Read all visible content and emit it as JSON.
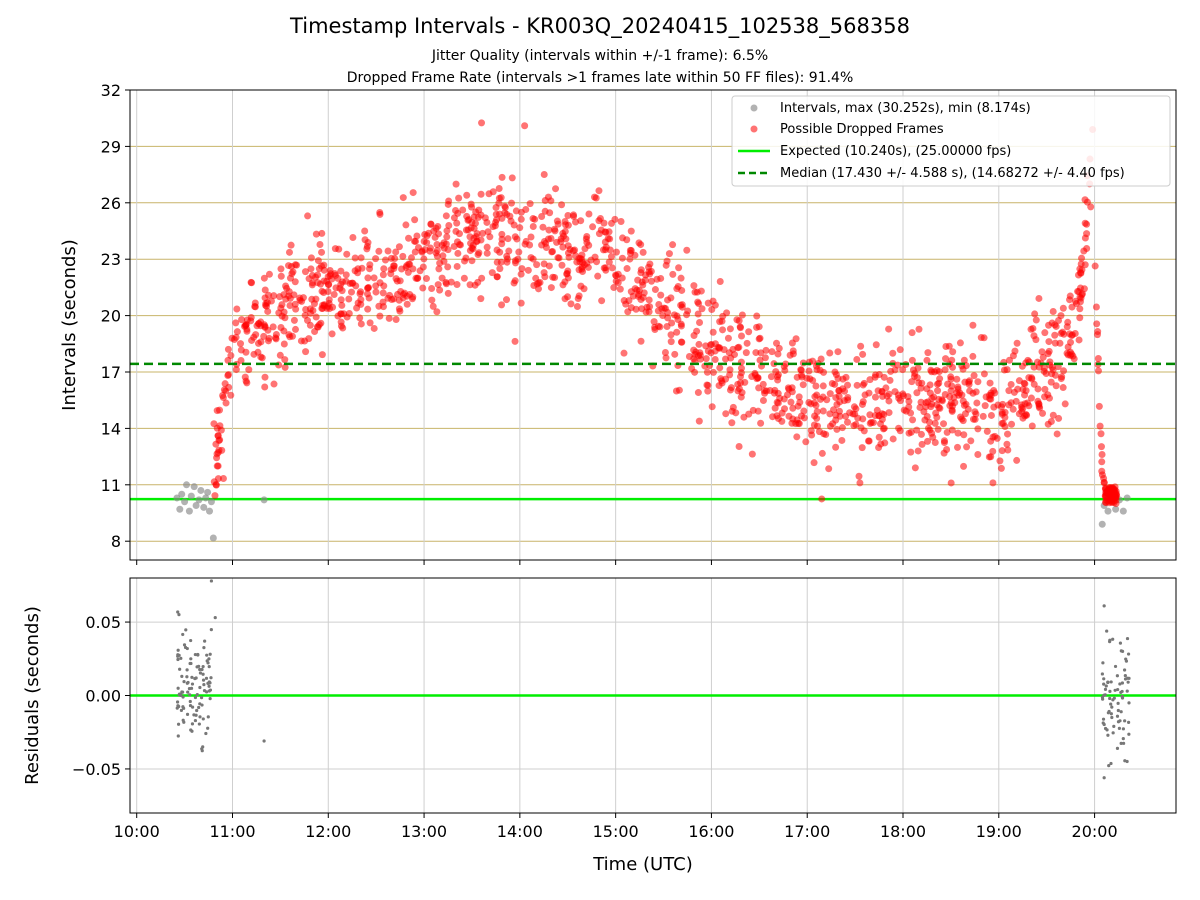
{
  "chart_data": [
    {
      "type": "scatter",
      "panel": "top",
      "title": "Timestamp Intervals - KR003Q_20240415_102538_568358",
      "subtitle_lines": [
        "Jitter Quality (intervals within +/-1 frame): 6.5%",
        "Dropped Frame Rate (intervals >1 frames late within 50 FF files): 91.4%"
      ],
      "ylabel": "Intervals (seconds)",
      "xlabel": "",
      "xlim": [
        9.93,
        20.85
      ],
      "ylim": [
        7.0,
        32.0
      ],
      "yticks": [
        8,
        11,
        14,
        17,
        20,
        23,
        26,
        29,
        32
      ],
      "ytick_labels": [
        "8",
        "11",
        "14",
        "17",
        "20",
        "23",
        "26",
        "29",
        "32"
      ],
      "grid": true,
      "legend_position": "top-right",
      "legend": [
        "Intervals, max (30.252s), min (8.174s)",
        "Possible Dropped Frames",
        "Expected (10.240s), (25.00000 fps)",
        "Median (17.430 +/- 4.588 s), (14.68272 +/- 4.40 fps)"
      ],
      "expected_interval": 10.24,
      "median_interval": 17.43,
      "interval_max": 30.252,
      "interval_min": 8.174,
      "series": [
        {
          "name": "Intervals, max (30.252s), min (8.174s)",
          "style": "gray-dots",
          "points": [
            [
              10.42,
              10.3
            ],
            [
              10.45,
              9.7
            ],
            [
              10.47,
              10.5
            ],
            [
              10.5,
              10.1
            ],
            [
              10.52,
              11.0
            ],
            [
              10.55,
              9.6
            ],
            [
              10.57,
              10.4
            ],
            [
              10.6,
              10.9
            ],
            [
              10.62,
              9.9
            ],
            [
              10.65,
              10.2
            ],
            [
              10.67,
              10.7
            ],
            [
              10.7,
              9.8
            ],
            [
              10.72,
              10.3
            ],
            [
              10.74,
              10.6
            ],
            [
              10.76,
              9.6
            ],
            [
              10.78,
              10.1
            ],
            [
              10.8,
              8.17
            ],
            [
              11.33,
              10.2
            ],
            [
              20.08,
              8.9
            ],
            [
              20.1,
              9.9
            ],
            [
              20.14,
              9.6
            ],
            [
              20.18,
              10.4
            ],
            [
              20.22,
              9.7
            ],
            [
              20.26,
              10.2
            ],
            [
              20.3,
              9.6
            ],
            [
              20.34,
              10.3
            ]
          ]
        },
        {
          "name": "Possible Dropped Frames",
          "style": "red-dots",
          "curve_knots": [
            [
              10.8,
              11.0
            ],
            [
              10.9,
              15.0
            ],
            [
              11.0,
              18.0
            ],
            [
              11.2,
              19.3
            ],
            [
              11.5,
              20.3
            ],
            [
              12.0,
              21.0
            ],
            [
              12.5,
              21.8
            ],
            [
              13.0,
              22.8
            ],
            [
              13.5,
              24.0
            ],
            [
              14.0,
              24.3
            ],
            [
              14.5,
              23.6
            ],
            [
              15.0,
              22.6
            ],
            [
              15.5,
              20.5
            ],
            [
              16.0,
              18.0
            ],
            [
              16.5,
              16.8
            ],
            [
              17.0,
              15.6
            ],
            [
              17.5,
              15.0
            ],
            [
              18.0,
              15.5
            ],
            [
              18.5,
              15.6
            ],
            [
              19.0,
              15.0
            ],
            [
              19.3,
              16.0
            ],
            [
              19.5,
              17.0
            ],
            [
              19.7,
              18.0
            ],
            [
              19.82,
              20.0
            ],
            [
              19.9,
              24.0
            ],
            [
              19.95,
              27.0
            ],
            [
              20.0,
              23.0
            ],
            [
              20.05,
              16.0
            ],
            [
              20.08,
              12.0
            ],
            [
              20.12,
              10.4
            ]
          ],
          "spread": 1.5,
          "extreme_points": [
            [
              13.6,
              30.252
            ],
            [
              14.05,
              30.1
            ],
            [
              19.98,
              29.9
            ],
            [
              17.55,
              11.1
            ]
          ]
        },
        {
          "name": "Expected (10.240s), (25.00000 fps)",
          "style": "green-solid-line",
          "y": 10.24
        },
        {
          "name": "Median (17.430 +/- 4.588 s), (14.68272 +/- 4.40 fps)",
          "style": "green-dashed-line",
          "y": 17.43
        }
      ]
    },
    {
      "type": "scatter",
      "panel": "bottom",
      "xlabel": "Time (UTC)",
      "ylabel": "Residuals (seconds)",
      "xlim": [
        9.93,
        20.85
      ],
      "ylim": [
        -0.08,
        0.08
      ],
      "yticks": [
        -0.05,
        0.0,
        0.05
      ],
      "ytick_labels": [
        "−0.05",
        "0.00",
        "0.05"
      ],
      "xticks": [
        10,
        11,
        12,
        13,
        14,
        15,
        16,
        17,
        18,
        19,
        20
      ],
      "xtick_labels": [
        "10:00",
        "11:00",
        "12:00",
        "13:00",
        "14:00",
        "15:00",
        "16:00",
        "17:00",
        "18:00",
        "19:00",
        "20:00"
      ],
      "grid": true,
      "zero_line": 0.0,
      "series": [
        {
          "name": "",
          "style": "gray-small-dots",
          "clusters": [
            {
              "x_range": [
                10.42,
                10.78
              ],
              "count": 110,
              "y_range": [
                -0.04,
                0.062
              ]
            },
            {
              "x_range": [
                20.08,
                20.36
              ],
              "count": 80,
              "y_range": [
                -0.056,
                0.062
              ]
            }
          ],
          "points": [
            [
              10.78,
              0.078
            ],
            [
              11.33,
              -0.031
            ],
            [
              10.82,
              0.053
            ],
            [
              20.1,
              -0.056
            ],
            [
              20.1,
              0.061
            ]
          ]
        }
      ]
    }
  ]
}
